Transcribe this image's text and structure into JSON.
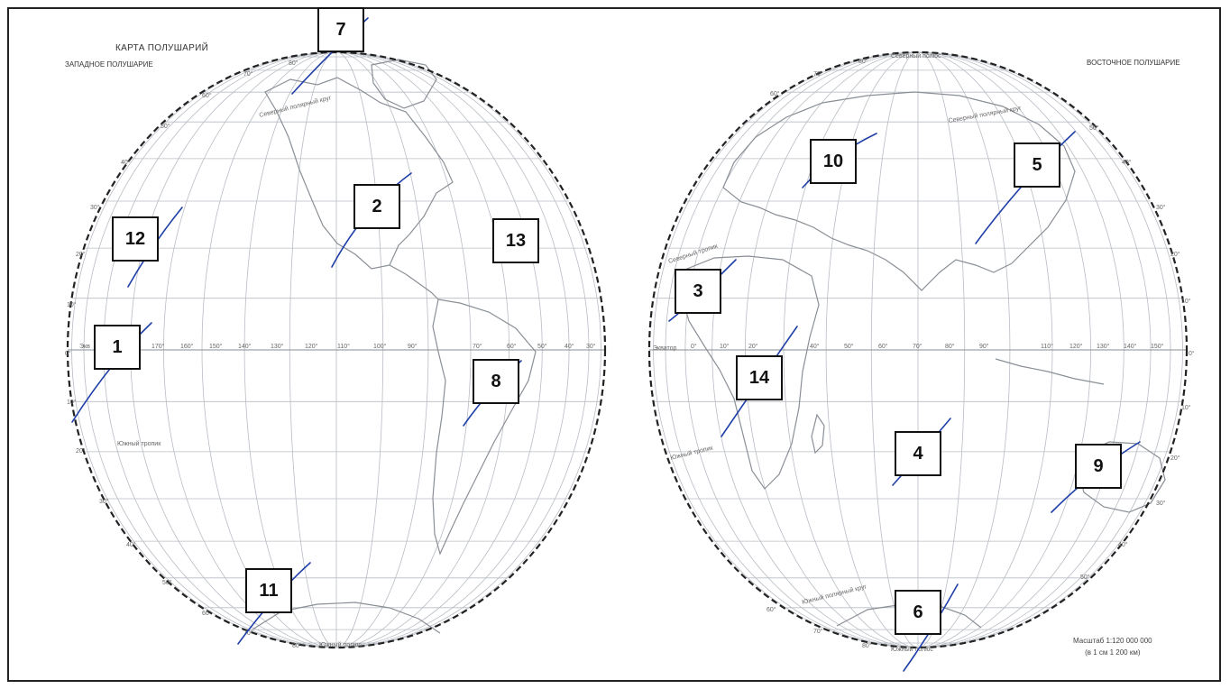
{
  "map": {
    "title": "КАРТА ПОЛУШАРИЙ",
    "west_label": "ЗАПАДНОЕ ПОЛУШАРИЕ",
    "east_label": "ВОСТОЧНОЕ ПОЛУШАРИЕ",
    "scale_line1": "Масштаб 1:120 000 000",
    "scale_line2": "(в 1 см 1 200 км)"
  },
  "west_labels": {
    "north_pole": "",
    "south_pole": "Южный полюс",
    "arctic_circle": "Северный полярный круг",
    "tropic_south": "Южный тропик",
    "equator": "Экв",
    "lon_170": "170°",
    "lon_160": "160°",
    "lon_150": "150°",
    "lon_140": "140°",
    "lon_130": "130°",
    "lon_120": "120°",
    "lon_110": "110°",
    "lon_100": "100°",
    "lon_90": "90°",
    "lon_70": "70°",
    "lon_60": "60°",
    "lon_50": "50°",
    "lon_40": "40°",
    "lon_30": "30°",
    "lat_0": "0°",
    "lat_10n": "10°",
    "lat_20n": "20°",
    "lat_30n": "30°",
    "lat_40n": "40°",
    "lat_50n": "50°",
    "lat_60n": "60°",
    "lat_70n": "70°",
    "lat_80n": "80°",
    "lat_10s": "10°",
    "lat_20s": "20°",
    "lat_30s": "30°",
    "lat_40s": "40°",
    "lat_50s": "50°",
    "lat_60s": "60°",
    "lat_70s": "70°",
    "lat_80s": "80°"
  },
  "east_labels": {
    "north_pole": "Северный полюс",
    "south_pole": "Южный полюс",
    "arctic_circle": "Северный полярный круг",
    "antarctic_circle": "Южный полярный круг",
    "tropic_north": "Северный тропик",
    "tropic_south": "Южный тропик",
    "equator": "Экватор",
    "lon_0": "0°",
    "lon_10": "10°",
    "lon_20": "20°",
    "lon_40": "40°",
    "lon_50": "50°",
    "lon_60": "60°",
    "lon_70": "70°",
    "lon_80": "80°",
    "lon_90": "90°",
    "lon_110": "110°",
    "lon_120": "120°",
    "lon_130": "130°",
    "lon_140": "140°",
    "lon_150": "150°",
    "lat_10n": "10°",
    "lat_20n": "20°",
    "lat_30n": "30°",
    "lat_40n": "40°",
    "lat_50n": "50°",
    "lat_60n": "60°",
    "lat_70n": "70°",
    "lat_80n": "80°",
    "lat_0": "0°",
    "lat_10s": "10°",
    "lat_20s": "20°",
    "lat_30s": "30°",
    "lat_40s": "40°",
    "lat_50s": "50°",
    "lat_60s": "60°",
    "lat_70s": "70°",
    "lat_80s": "80°"
  },
  "markers": [
    {
      "n": "1"
    },
    {
      "n": "2"
    },
    {
      "n": "3"
    },
    {
      "n": "4"
    },
    {
      "n": "5"
    },
    {
      "n": "6"
    },
    {
      "n": "7"
    },
    {
      "n": "8"
    },
    {
      "n": "9"
    },
    {
      "n": "10"
    },
    {
      "n": "11"
    },
    {
      "n": "12"
    },
    {
      "n": "13"
    },
    {
      "n": "14"
    }
  ],
  "colors": {
    "frame": "#222222",
    "graticule": "#b8bcc4",
    "outline": "#222222",
    "coast": "#8a8f96",
    "pen": "#1f3fa8",
    "box_border": "#111111"
  }
}
